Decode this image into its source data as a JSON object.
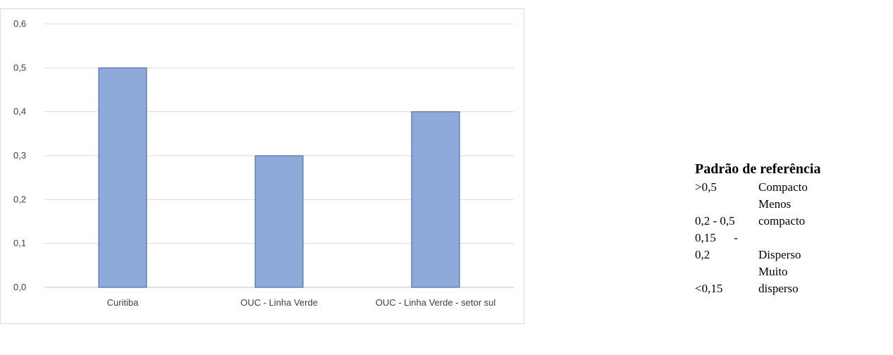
{
  "chart_data": {
    "type": "bar",
    "categories": [
      "Curitiba",
      "OUC - Linha Verde",
      "OUC - Linha Verde - setor sul"
    ],
    "values": [
      0.5,
      0.3,
      0.4
    ],
    "ylim": [
      0,
      0.6
    ],
    "yticks": [
      "0,0",
      "0,1",
      "0,2",
      "0,3",
      "0,4",
      "0,5",
      "0,6"
    ],
    "grid": true,
    "title": "",
    "xlabel": "",
    "ylabel": "",
    "bar_color": "#8eaadb",
    "bar_edge_color": "#3f5e9a"
  },
  "reference": {
    "title": "Padrão de referência",
    "rows": [
      {
        "range_lines": [
          ">0,5"
        ],
        "class_lines": [
          "Compacto"
        ]
      },
      {
        "range_lines": [
          "",
          "0,2 - 0,5"
        ],
        "class_lines": [
          "Menos",
          "compacto"
        ]
      },
      {
        "range_lines": [
          "0,15      -",
          "0,2"
        ],
        "class_lines": [
          "",
          "Disperso"
        ]
      },
      {
        "range_lines": [
          "",
          "<0,15"
        ],
        "class_lines": [
          "Muito",
          "disperso"
        ]
      }
    ]
  }
}
